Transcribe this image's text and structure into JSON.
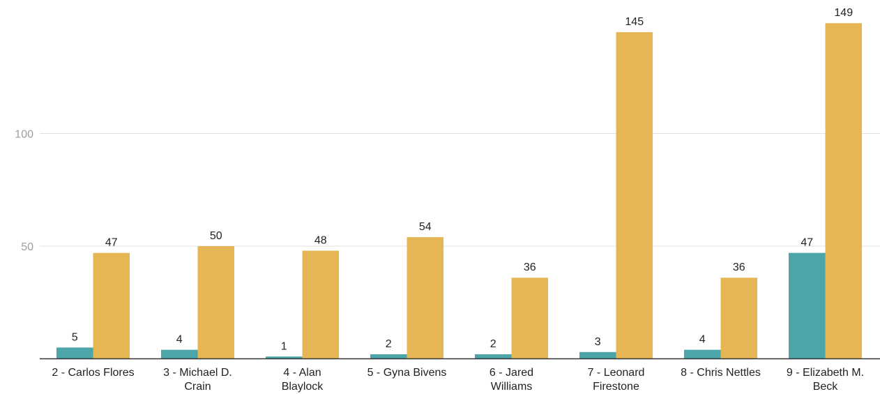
{
  "chart_data": {
    "type": "bar",
    "title": "",
    "xlabel": "",
    "ylabel": "",
    "categories": [
      [
        "2 - Carlos Flores"
      ],
      [
        "3 - Michael D.",
        "Crain"
      ],
      [
        "4 - Alan",
        "Blaylock"
      ],
      [
        "5 - Gyna Bivens"
      ],
      [
        "6 - Jared",
        "Williams"
      ],
      [
        "7 - Leonard",
        "Firestone"
      ],
      [
        "8 - Chris Nettles"
      ],
      [
        "9 - Elizabeth M.",
        "Beck"
      ]
    ],
    "series": [
      {
        "color": "#4ba5a9",
        "values": [
          5,
          4,
          1,
          2,
          2,
          3,
          4,
          47
        ]
      },
      {
        "color": "#e6b655",
        "values": [
          47,
          50,
          48,
          54,
          36,
          145,
          36,
          149
        ]
      }
    ],
    "yticks": [
      50,
      100
    ],
    "ylim": [
      0,
      155
    ],
    "grid": true,
    "legend": "none"
  }
}
